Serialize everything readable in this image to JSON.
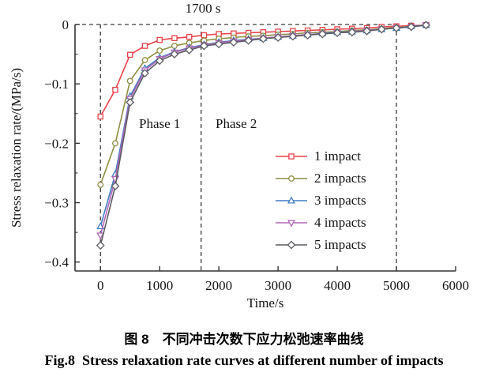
{
  "captions": {
    "chinese": "图 8　不同冲击次数下应力松弛速率曲线",
    "english": "Fig.8  Stress relaxation rate curves at different number of impacts"
  },
  "chart_data": {
    "type": "line",
    "xlabel": "Time/s",
    "ylabel": "Stress relaxation rate/(MPa/s)",
    "xlim": [
      -430,
      6000
    ],
    "ylim": [
      -0.415,
      0
    ],
    "grid": false,
    "legend_position": "center-right",
    "x_ticks": [
      "0",
      "1000",
      "2000",
      "3000",
      "4000",
      "5000",
      "6000"
    ],
    "x_tick_values": [
      0,
      1000,
      2000,
      3000,
      4000,
      5000,
      6000
    ],
    "y_tick_labels": [
      "0",
      "−0.1",
      "−0.2",
      "−0.3",
      "−0.4"
    ],
    "y_tick_values": [
      0,
      -0.1,
      -0.2,
      -0.3,
      -0.4
    ],
    "y_minor_ticks": [
      -0.05,
      -0.15,
      -0.25,
      -0.35
    ],
    "dashed_vlines": [
      0,
      1700,
      5000
    ],
    "dashed_hline": {
      "y": 0,
      "x_start": -430,
      "x_end": 5000
    },
    "annotations": {
      "top_label": "1700 s",
      "phase1": "Phase 1",
      "phase2": "Phase 2"
    },
    "axis_color": "#333333",
    "dash_color": "#3a3a3a",
    "x": [
      0,
      250,
      500,
      750,
      1000,
      1250,
      1500,
      1750,
      2000,
      2250,
      2500,
      2750,
      3000,
      3250,
      3500,
      3750,
      4000,
      4250,
      4500,
      4750,
      5000,
      5250,
      5500
    ],
    "series": [
      {
        "name": "1 impact",
        "color": "#e8424a",
        "marker": "square",
        "values": [
          -0.155,
          -0.11,
          -0.051,
          -0.036,
          -0.026,
          -0.023,
          -0.021,
          -0.018,
          -0.016,
          -0.015,
          -0.014,
          -0.013,
          -0.012,
          -0.011,
          -0.01,
          -0.009,
          -0.008,
          -0.007,
          -0.006,
          -0.004,
          -0.003,
          -0.002,
          -0.001
        ]
      },
      {
        "name": "2 impacts",
        "color": "#8e8e41",
        "marker": "circle",
        "values": [
          -0.27,
          -0.2,
          -0.095,
          -0.06,
          -0.044,
          -0.036,
          -0.031,
          -0.027,
          -0.024,
          -0.022,
          -0.02,
          -0.019,
          -0.017,
          -0.016,
          -0.014,
          -0.013,
          -0.012,
          -0.01,
          -0.009,
          -0.007,
          -0.005,
          -0.003,
          -0.001
        ]
      },
      {
        "name": "3 impacts",
        "color": "#3f7dc4",
        "marker": "triangle-up",
        "values": [
          -0.34,
          -0.252,
          -0.121,
          -0.074,
          -0.056,
          -0.046,
          -0.039,
          -0.034,
          -0.03,
          -0.027,
          -0.025,
          -0.023,
          -0.021,
          -0.019,
          -0.017,
          -0.015,
          -0.013,
          -0.012,
          -0.01,
          -0.008,
          -0.006,
          -0.003,
          -0.001
        ]
      },
      {
        "name": "4 impacts",
        "color": "#b266b8",
        "marker": "triangle-down",
        "values": [
          -0.355,
          -0.26,
          -0.125,
          -0.077,
          -0.058,
          -0.047,
          -0.04,
          -0.035,
          -0.031,
          -0.028,
          -0.026,
          -0.023,
          -0.021,
          -0.019,
          -0.017,
          -0.016,
          -0.014,
          -0.012,
          -0.01,
          -0.008,
          -0.006,
          -0.004,
          -0.001
        ]
      },
      {
        "name": "5 impacts",
        "color": "#5c5c62",
        "marker": "diamond",
        "values": [
          -0.372,
          -0.272,
          -0.131,
          -0.082,
          -0.061,
          -0.05,
          -0.043,
          -0.036,
          -0.033,
          -0.03,
          -0.027,
          -0.024,
          -0.022,
          -0.02,
          -0.018,
          -0.016,
          -0.014,
          -0.013,
          -0.011,
          -0.008,
          -0.006,
          -0.004,
          -0.001
        ]
      }
    ]
  }
}
